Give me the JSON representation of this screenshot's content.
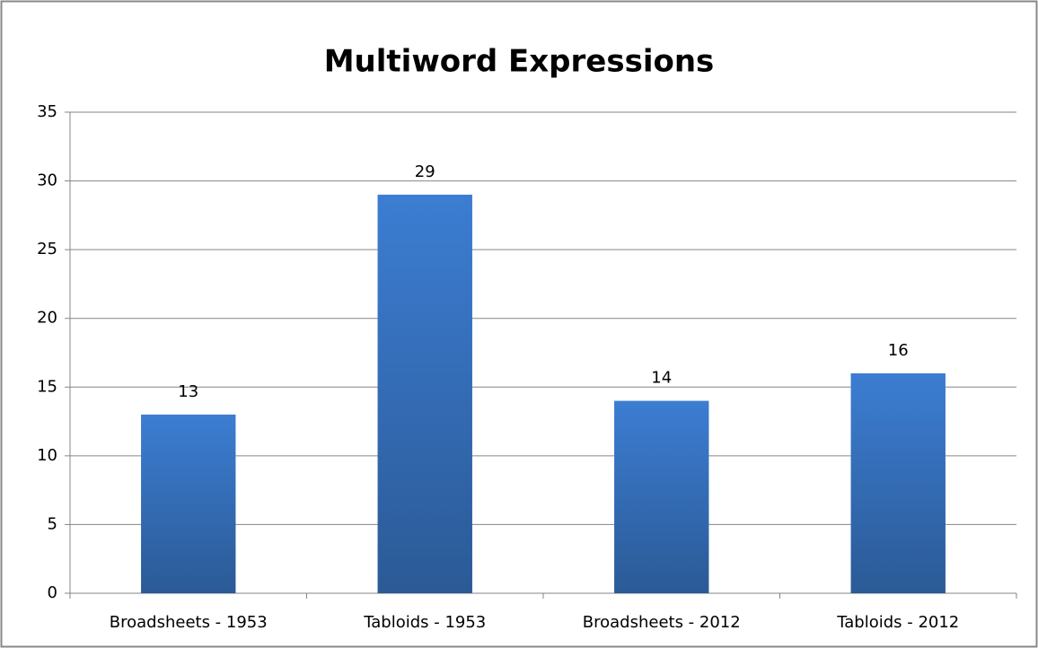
{
  "chart_data": {
    "type": "bar",
    "title": "Multiword Expressions",
    "categories": [
      "Broadsheets - 1953",
      "Tabloids - 1953",
      "Broadsheets - 2012",
      "Tabloids - 2012"
    ],
    "values": [
      13,
      29,
      14,
      16
    ],
    "color": "#3c7dd2",
    "ylim": [
      0,
      35
    ],
    "yticks": [
      0,
      5,
      10,
      15,
      20,
      25,
      30,
      35
    ],
    "grid": true
  }
}
